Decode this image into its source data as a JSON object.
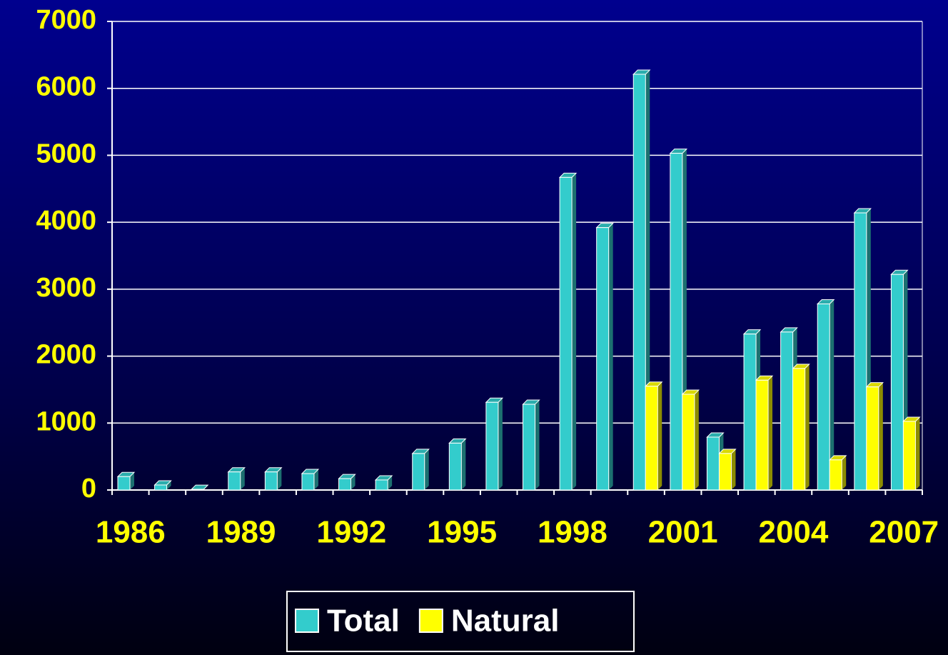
{
  "chart_data": {
    "type": "bar",
    "categories": [
      "1986",
      null,
      null,
      "1989",
      null,
      null,
      "1992",
      null,
      null,
      "1995",
      null,
      null,
      "1998",
      null,
      null,
      "2001",
      null,
      null,
      "2004",
      null,
      null,
      "2007"
    ],
    "series": [
      {
        "name": "Total",
        "color": "#33cccc",
        "values": [
          200,
          75,
          10,
          270,
          270,
          245,
          170,
          150,
          545,
          700,
          1310,
          1280,
          4670,
          3920,
          6210,
          5030,
          790,
          2330,
          2360,
          2780,
          4140,
          3220
        ]
      },
      {
        "name": "Natural",
        "color": "#ffff00",
        "values": [
          null,
          null,
          null,
          null,
          null,
          null,
          null,
          null,
          null,
          null,
          null,
          null,
          null,
          null,
          1550,
          1430,
          545,
          1640,
          1815,
          450,
          1540,
          1025
        ]
      }
    ],
    "ylim": [
      0,
      7000
    ],
    "yticks": [
      0,
      1000,
      2000,
      3000,
      4000,
      5000,
      6000,
      7000
    ],
    "grid": true
  }
}
